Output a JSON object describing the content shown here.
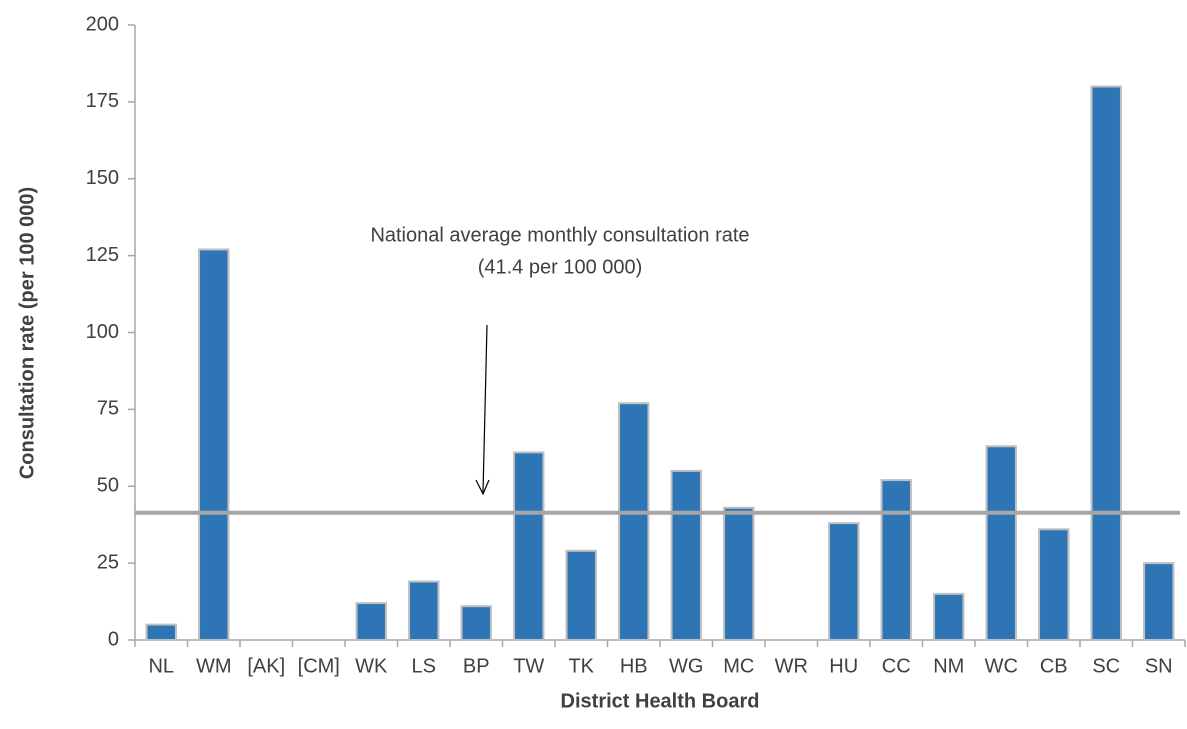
{
  "chart_data": {
    "type": "bar",
    "y_axis_label": "Consultation rate (per 100 000)",
    "x_axis_label": "District Health Board",
    "annotation": [
      "National average monthly consultation rate",
      "(41.4 per 100 000)"
    ],
    "categories": [
      "NL",
      "WM",
      "[AK]",
      "[CM]",
      "WK",
      "LS",
      "BP",
      "TW",
      "TK",
      "HB",
      "WG",
      "MC",
      "WR",
      "HU",
      "CC",
      "NM",
      "WC",
      "CB",
      "SC",
      "SN"
    ],
    "values": [
      5,
      127,
      null,
      null,
      12,
      19,
      11,
      61,
      29,
      77,
      55,
      43,
      null,
      38,
      52,
      15,
      63,
      36,
      180,
      25
    ],
    "color": "#2e75b6",
    "reference_line": {
      "value": 41.4,
      "color": "#a6a6a6"
    },
    "ylim": [
      0,
      200
    ],
    "yticks": [
      0,
      25,
      50,
      75,
      100,
      125,
      150,
      175,
      200
    ],
    "grid": false
  }
}
